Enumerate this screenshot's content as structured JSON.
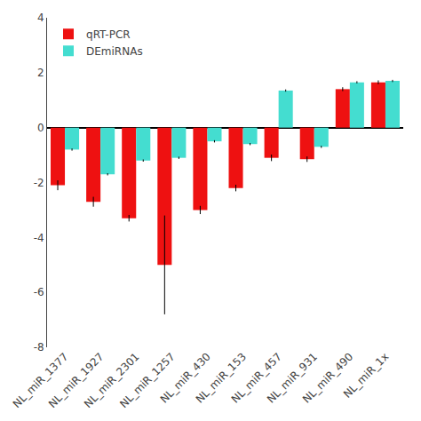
{
  "chart_data": {
    "type": "bar",
    "categories": [
      "NL_miR_1377",
      "NL_miR_1927",
      "NL_miR_2301",
      "NL_miR_1257",
      "NL_miR_430",
      "NL_miR_153",
      "NL_miR_457",
      "NL_miR_931",
      "NL_miR_490",
      "NL_miR_1x"
    ],
    "series": [
      {
        "name": "qRT-PCR",
        "color": "#EE1111",
        "values": [
          -2.1,
          -2.7,
          -3.3,
          -5.0,
          -3.0,
          -2.2,
          -1.1,
          -1.15,
          1.4,
          1.65
        ],
        "errors": [
          0.18,
          0.18,
          0.12,
          1.8,
          0.15,
          0.12,
          0.12,
          0.1,
          0.07,
          0.07
        ]
      },
      {
        "name": "DEmiRNAs",
        "color": "#44DDD0",
        "values": [
          -0.8,
          -1.7,
          -1.2,
          -1.1,
          -0.5,
          -0.6,
          1.35,
          -0.7,
          1.65,
          1.7
        ],
        "errors": [
          0.04,
          0.04,
          0.04,
          0.04,
          0.04,
          0.04,
          0.04,
          0.04,
          0.04,
          0.04
        ]
      }
    ],
    "ylim": [
      -8,
      4
    ],
    "yticks": [
      -8,
      -6,
      -4,
      -2,
      0,
      2,
      4
    ],
    "grid": false,
    "legend": "upper left"
  }
}
